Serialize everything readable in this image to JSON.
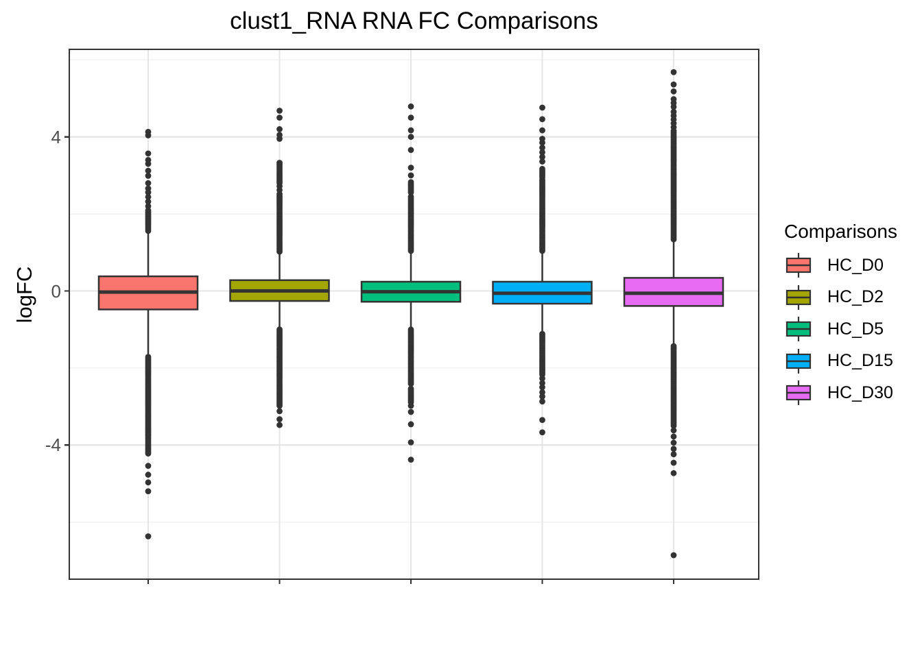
{
  "title": "clust1_RNA RNA FC Comparisons",
  "axes": {
    "y_label": "logFC"
  },
  "legend": {
    "title": "Comparisons",
    "position": "right",
    "items": [
      {
        "label": "HC_D0",
        "color": "#F8766D"
      },
      {
        "label": "HC_D2",
        "color": "#A3A500"
      },
      {
        "label": "HC_D5",
        "color": "#00BF7D"
      },
      {
        "label": "HC_D15",
        "color": "#00B0F6"
      },
      {
        "label": "HC_D30",
        "color": "#E76BF3"
      }
    ]
  },
  "chart_data": {
    "type": "boxplot",
    "title": "clust1_RNA RNA FC Comparisons",
    "xlabel": "",
    "ylabel": "logFC",
    "ylim": [
      -7.5,
      6.3
    ],
    "yticks": [
      {
        "value": 4,
        "label": "4"
      },
      {
        "value": 0,
        "label": "0"
      },
      {
        "value": -4,
        "label": "-4"
      }
    ],
    "grid": {
      "major_y": [
        4,
        0,
        -4
      ],
      "minor_y": [
        6,
        2,
        -2,
        -6
      ],
      "vertical_at_categories": true
    },
    "x_tick_labels_visible": false,
    "legend_title": "Comparisons",
    "legend_position": "right",
    "categories": [
      "HC_D0",
      "HC_D2",
      "HC_D5",
      "HC_D15",
      "HC_D30"
    ],
    "series": [
      {
        "name": "HC_D0",
        "color": "#F8766D",
        "q1": -0.48,
        "median": -0.03,
        "q3": 0.38,
        "whisker_low": -1.64,
        "whisker_high": 1.55,
        "outlier_runs_high": [
          [
            1.56,
            2.1
          ]
        ],
        "outliers_high": [
          2.2,
          2.32,
          2.44,
          2.56,
          2.66,
          2.8,
          2.99,
          3.12,
          3.3,
          3.4,
          3.57,
          4.04,
          4.13
        ],
        "outlier_runs_low": [
          [
            -4.22,
            -1.68
          ]
        ],
        "outliers_low": [
          -4.54,
          -4.77,
          -4.97,
          -5.2,
          -6.37
        ]
      },
      {
        "name": "HC_D2",
        "color": "#A3A500",
        "q1": -0.26,
        "median": 0.0,
        "q3": 0.28,
        "whisker_low": -0.93,
        "whisker_high": 1.0,
        "outlier_runs_high": [
          [
            1.02,
            2.55
          ],
          [
            2.8,
            3.36
          ]
        ],
        "outliers_high": [
          2.62,
          2.72,
          3.95,
          4.05,
          4.2,
          4.5,
          4.68
        ],
        "outlier_runs_low": [
          [
            -2.98,
            -0.96
          ]
        ],
        "outliers_low": [
          -3.12,
          -3.33,
          -3.48
        ]
      },
      {
        "name": "HC_D5",
        "color": "#00BF7D",
        "q1": -0.28,
        "median": -0.02,
        "q3": 0.24,
        "whisker_low": -0.97,
        "whisker_high": 1.01,
        "outlier_runs_high": [
          [
            1.04,
            2.45
          ],
          [
            2.56,
            2.85
          ]
        ],
        "outliers_high": [
          3.0,
          3.2,
          3.66,
          4.0,
          4.17,
          4.5,
          4.79
        ],
        "outlier_runs_low": [
          [
            -2.41,
            -1.0
          ],
          [
            -2.89,
            -2.5
          ]
        ],
        "outliers_low": [
          -2.98,
          -3.14,
          -3.46,
          -3.93,
          -4.38
        ]
      },
      {
        "name": "HC_D15",
        "color": "#00B0F6",
        "q1": -0.33,
        "median": -0.06,
        "q3": 0.24,
        "whisker_low": -1.07,
        "whisker_high": 1.01,
        "outlier_runs_high": [
          [
            1.04,
            2.89
          ],
          [
            2.95,
            3.2
          ]
        ],
        "outliers_high": [
          3.36,
          3.48,
          3.6,
          3.72,
          3.85,
          3.95,
          4.17,
          4.46,
          4.76
        ],
        "outlier_runs_low": [
          [
            -2.17,
            -1.1
          ]
        ],
        "outliers_low": [
          -2.27,
          -2.39,
          -2.5,
          -2.63,
          -2.74,
          -2.87,
          -3.35,
          -3.67
        ]
      },
      {
        "name": "HC_D30",
        "color": "#E76BF3",
        "q1": -0.39,
        "median": -0.06,
        "q3": 0.34,
        "whisker_low": -1.37,
        "whisker_high": 1.31,
        "outlier_runs_high": [
          [
            1.34,
            4.17
          ]
        ],
        "outliers_high": [
          4.25,
          4.35,
          4.45,
          4.55,
          4.65,
          4.78,
          4.88,
          4.98,
          5.18,
          5.36,
          5.68
        ],
        "outlier_runs_low": [
          [
            -3.5,
            -1.4
          ]
        ],
        "outliers_low": [
          -3.62,
          -3.78,
          -3.94,
          -4.1,
          -4.24,
          -4.46,
          -4.73,
          -6.86
        ]
      }
    ]
  }
}
